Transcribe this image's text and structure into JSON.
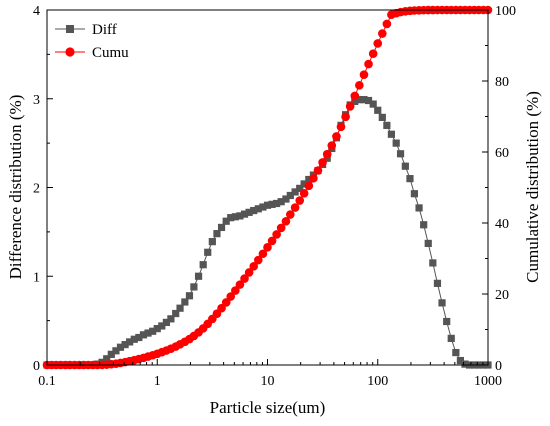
{
  "colors": {
    "diff": "#555555",
    "cumu": "#ff0000",
    "axis": "#000000"
  },
  "chart_data": {
    "type": "line",
    "xlabel": "Particle size(um)",
    "ylabel_left": "Difference distribution (%)",
    "ylabel_right": "Cumulative distribution (%)",
    "x_scale": "log",
    "xlim": [
      0.1,
      1000
    ],
    "ylim_left": [
      0,
      4
    ],
    "ylim_right": [
      0,
      100
    ],
    "x_ticks": [
      0.1,
      1,
      10,
      100,
      1000
    ],
    "x_tick_labels": [
      "0.1",
      "1",
      "10",
      "100",
      "1000"
    ],
    "y_left_ticks": [
      0,
      1,
      2,
      3,
      4
    ],
    "y_left_tick_labels": [
      "0",
      "1",
      "2",
      "3",
      "4"
    ],
    "y_right_ticks": [
      0,
      20,
      40,
      60,
      80,
      100
    ],
    "y_right_tick_labels": [
      "0",
      "20",
      "40",
      "60",
      "80",
      "100"
    ],
    "grid": false,
    "legend_position": "top-left",
    "series": [
      {
        "name": "Diff",
        "axis": "left",
        "marker": "square",
        "color": "#555555",
        "x": [
          0.1,
          0.11,
          0.121,
          0.133,
          0.147,
          0.161,
          0.178,
          0.196,
          0.215,
          0.237,
          0.261,
          0.287,
          0.316,
          0.348,
          0.383,
          0.422,
          0.464,
          0.511,
          0.562,
          0.619,
          0.681,
          0.75,
          0.825,
          0.909,
          1,
          1.1,
          1.21,
          1.33,
          1.47,
          1.61,
          1.78,
          1.96,
          2.15,
          2.37,
          2.61,
          2.87,
          3.16,
          3.48,
          3.83,
          4.22,
          4.64,
          5.11,
          5.62,
          6.19,
          6.81,
          7.5,
          8.25,
          9.09,
          10,
          11,
          12.1,
          13.3,
          14.7,
          16.1,
          17.8,
          19.6,
          21.5,
          23.7,
          26.1,
          28.7,
          31.6,
          34.8,
          38.3,
          42.2,
          46.4,
          51.1,
          56.2,
          61.9,
          68.1,
          75,
          82.5,
          90.9,
          100,
          110,
          121,
          133,
          147,
          161,
          178,
          196,
          215,
          237,
          261,
          287,
          316,
          348,
          383,
          422,
          464,
          511,
          562,
          619,
          681,
          750,
          825,
          909,
          1000
        ],
        "values": [
          0,
          0,
          0,
          0,
          0,
          0,
          0,
          0,
          0,
          0,
          0,
          0.01,
          0.03,
          0.07,
          0.12,
          0.16,
          0.2,
          0.23,
          0.26,
          0.29,
          0.31,
          0.34,
          0.36,
          0.38,
          0.41,
          0.44,
          0.48,
          0.52,
          0.58,
          0.64,
          0.71,
          0.78,
          0.88,
          1,
          1.13,
          1.27,
          1.39,
          1.48,
          1.55,
          1.62,
          1.66,
          1.67,
          1.68,
          1.7,
          1.72,
          1.74,
          1.76,
          1.78,
          1.8,
          1.81,
          1.82,
          1.84,
          1.87,
          1.91,
          1.95,
          1.99,
          2.04,
          2.09,
          2.14,
          2.19,
          2.26,
          2.33,
          2.44,
          2.56,
          2.7,
          2.82,
          2.93,
          2.97,
          2.99,
          2.99,
          2.98,
          2.94,
          2.87,
          2.79,
          2.7,
          2.6,
          2.5,
          2.38,
          2.24,
          2.1,
          1.93,
          1.77,
          1.58,
          1.37,
          1.15,
          0.92,
          0.7,
          0.49,
          0.3,
          0.14,
          0.05,
          0.01,
          0,
          0,
          0,
          0,
          0
        ]
      },
      {
        "name": "Cumu",
        "axis": "right",
        "marker": "circle",
        "color": "#ff0000",
        "x": [
          0.1,
          0.11,
          0.121,
          0.133,
          0.147,
          0.161,
          0.178,
          0.196,
          0.215,
          0.237,
          0.261,
          0.287,
          0.316,
          0.348,
          0.383,
          0.422,
          0.464,
          0.511,
          0.562,
          0.619,
          0.681,
          0.75,
          0.825,
          0.909,
          1,
          1.1,
          1.21,
          1.33,
          1.47,
          1.61,
          1.78,
          1.96,
          2.15,
          2.37,
          2.61,
          2.87,
          3.16,
          3.48,
          3.83,
          4.22,
          4.64,
          5.11,
          5.62,
          6.19,
          6.81,
          7.5,
          8.25,
          9.09,
          10,
          11,
          12.1,
          13.3,
          14.7,
          16.1,
          17.8,
          19.6,
          21.5,
          23.7,
          26.1,
          28.7,
          31.6,
          34.8,
          38.3,
          42.2,
          46.4,
          51.1,
          56.2,
          61.9,
          68.1,
          75,
          82.5,
          90.9,
          100,
          110,
          121,
          133,
          147,
          161,
          178,
          196,
          215,
          237,
          261,
          287,
          316,
          348,
          383,
          422,
          464,
          511,
          562,
          619,
          681,
          750,
          825,
          909,
          1000
        ],
        "values": [
          0,
          0,
          0,
          0,
          0,
          0,
          0,
          0,
          0,
          0,
          0,
          0,
          0.03,
          0.1,
          0.22,
          0.38,
          0.58,
          0.81,
          1.07,
          1.36,
          1.67,
          2.01,
          2.37,
          2.75,
          3.16,
          3.6,
          4.08,
          4.6,
          5.18,
          5.82,
          6.53,
          7.31,
          8.19,
          9.19,
          10.32,
          11.59,
          12.98,
          14.46,
          16.01,
          17.63,
          19.29,
          20.96,
          22.64,
          24.34,
          26.06,
          27.8,
          29.56,
          31.34,
          33.14,
          34.95,
          36.77,
          38.61,
          40.48,
          42.39,
          44.34,
          46.33,
          48.37,
          50.46,
          52.6,
          54.79,
          57.05,
          59.38,
          61.82,
          64.38,
          67.08,
          69.9,
          72.83,
          75.8,
          78.79,
          81.78,
          84.76,
          87.7,
          90.57,
          93.37,
          96.07,
          98.67,
          99.1,
          99.4,
          99.62,
          99.77,
          99.86,
          99.92,
          99.96,
          99.98,
          99.99,
          100,
          100,
          100,
          100,
          100,
          100,
          100,
          100,
          100,
          100,
          100,
          100
        ]
      }
    ]
  }
}
